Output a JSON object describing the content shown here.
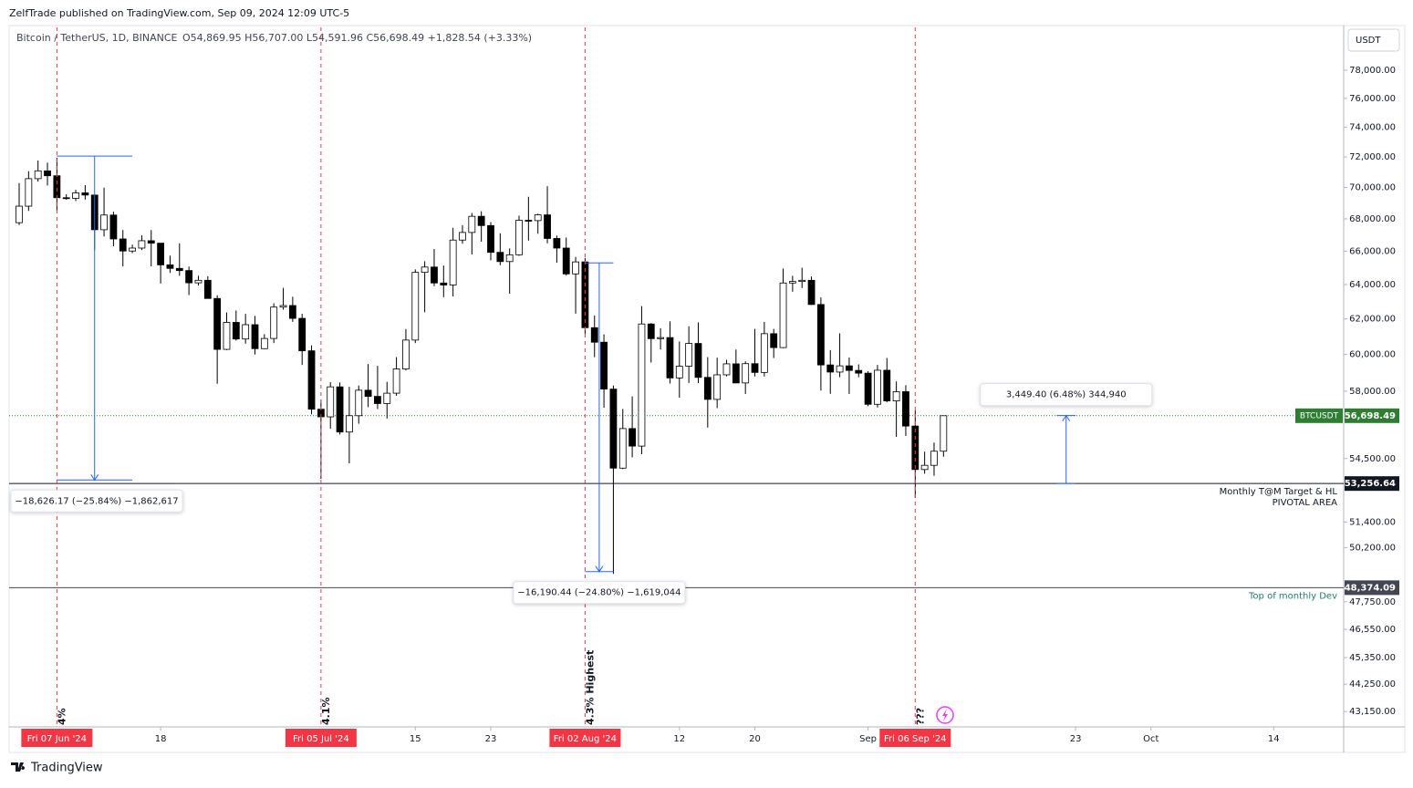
{
  "chart_data": {
    "type": "candlestick",
    "title": "ZelfTrade published on TradingView.com, Sep 09, 2024 12:09 UTC-5",
    "symbol": "Bitcoin / TetherUS, 1D, BINANCE",
    "ohlc_legend": "O54,869.95 H56,707.00 L54,591.96 C56,698.49 +1,828.54 (+3.33%)",
    "currency": "USDT",
    "brand": "TradingView",
    "log_scale": true,
    "x": [
      "2024-06-03",
      "2024-06-04",
      "2024-06-05",
      "2024-06-06",
      "2024-06-07",
      "2024-06-08",
      "2024-06-09",
      "2024-06-10",
      "2024-06-11",
      "2024-06-12",
      "2024-06-13",
      "2024-06-14",
      "2024-06-15",
      "2024-06-16",
      "2024-06-17",
      "2024-06-18",
      "2024-06-19",
      "2024-06-20",
      "2024-06-21",
      "2024-06-22",
      "2024-06-23",
      "2024-06-24",
      "2024-06-25",
      "2024-06-26",
      "2024-06-27",
      "2024-06-28",
      "2024-06-29",
      "2024-06-30",
      "2024-07-01",
      "2024-07-02",
      "2024-07-03",
      "2024-07-04",
      "2024-07-05",
      "2024-07-06",
      "2024-07-07",
      "2024-07-08",
      "2024-07-09",
      "2024-07-10",
      "2024-07-11",
      "2024-07-12",
      "2024-07-13",
      "2024-07-14",
      "2024-07-15",
      "2024-07-16",
      "2024-07-17",
      "2024-07-18",
      "2024-07-19",
      "2024-07-20",
      "2024-07-21",
      "2024-07-22",
      "2024-07-23",
      "2024-07-24",
      "2024-07-25",
      "2024-07-26",
      "2024-07-27",
      "2024-07-28",
      "2024-07-29",
      "2024-07-30",
      "2024-07-31",
      "2024-08-01",
      "2024-08-02",
      "2024-08-03",
      "2024-08-04",
      "2024-08-05",
      "2024-08-06",
      "2024-08-07",
      "2024-08-08",
      "2024-08-09",
      "2024-08-10",
      "2024-08-11",
      "2024-08-12",
      "2024-08-13",
      "2024-08-14",
      "2024-08-15",
      "2024-08-16",
      "2024-08-17",
      "2024-08-18",
      "2024-08-19",
      "2024-08-20",
      "2024-08-21",
      "2024-08-22",
      "2024-08-23",
      "2024-08-24",
      "2024-08-25",
      "2024-08-26",
      "2024-08-27",
      "2024-08-28",
      "2024-08-29",
      "2024-08-30",
      "2024-08-31",
      "2024-09-01",
      "2024-09-02",
      "2024-09-03",
      "2024-09-04",
      "2024-09-05",
      "2024-09-06",
      "2024-09-07",
      "2024-09-08",
      "2024-09-09"
    ],
    "open": [
      67760,
      68800,
      70570,
      71080,
      70760,
      69340,
      69300,
      69650,
      69510,
      67320,
      68240,
      66750,
      66010,
      66190,
      66640,
      66490,
      65170,
      64960,
      64830,
      64100,
      64250,
      63180,
      60280,
      61800,
      60860,
      61670,
      60320,
      60890,
      62680,
      62770,
      62030,
      60200,
      57040,
      56640,
      58230,
      55850,
      56700,
      58050,
      57720,
      57340,
      57890,
      59200,
      60800,
      64720,
      65040,
      64090,
      63970,
      66680,
      67150,
      68160,
      67580,
      65930,
      65370,
      65780,
      67910,
      67890,
      68250,
      66780,
      66190,
      64630,
      65350,
      61500,
      60680,
      58110,
      54020,
      56030,
      55130,
      61710,
      60880,
      60940,
      58710,
      59350,
      60610,
      58740,
      57560,
      58880,
      59480,
      58440,
      59490,
      59010,
      61160,
      60380,
      64090,
      64180,
      64250,
      62830,
      59420,
      59030,
      59370,
      59120,
      58970,
      57300,
      59130,
      57480,
      57970,
      56160,
      53950,
      54160,
      54869.95
    ],
    "high": [
      70280,
      71060,
      71760,
      71620,
      71950,
      69560,
      69850,
      70150,
      69560,
      69990,
      68450,
      67300,
      66400,
      66980,
      67300,
      66490,
      65730,
      66480,
      65070,
      64520,
      64490,
      63370,
      62370,
      62480,
      62290,
      62170,
      61130,
      62900,
      63800,
      63280,
      62290,
      60500,
      57560,
      58480,
      58470,
      58230,
      58300,
      59470,
      59370,
      58500,
      59850,
      61420,
      64900,
      65390,
      66130,
      65130,
      67440,
      67600,
      68370,
      68480,
      67800,
      67100,
      66170,
      68200,
      69400,
      68320,
      70080,
      66960,
      66840,
      65650,
      65590,
      62200,
      61120,
      58300,
      57050,
      57720,
      62740,
      61760,
      61470,
      61860,
      60720,
      61580,
      61800,
      59850,
      59820,
      59700,
      60270,
      59620,
      61430,
      61830,
      61430,
      64950,
      64520,
      65000,
      64480,
      63240,
      60240,
      61180,
      59830,
      59450,
      59080,
      59420,
      59800,
      58520,
      58320,
      56990,
      54850,
      55310,
      56707
    ],
    "low": [
      67610,
      68500,
      70380,
      70120,
      68500,
      69210,
      69130,
      69220,
      66060,
      66900,
      66300,
      65080,
      65880,
      66070,
      65080,
      64060,
      64690,
      64520,
      63380,
      63940,
      63180,
      58400,
      60240,
      60770,
      60600,
      60000,
      60300,
      60630,
      62530,
      61830,
      59420,
      56770,
      53490,
      56020,
      55720,
      54260,
      56280,
      57150,
      57050,
      56550,
      57750,
      59120,
      60630,
      62380,
      63900,
      63260,
      63300,
      66460,
      65800,
      66580,
      65440,
      65150,
      63460,
      65720,
      66650,
      67070,
      66480,
      65300,
      64530,
      62300,
      61160,
      59850,
      57120,
      49000,
      53970,
      54560,
      54720,
      59550,
      60270,
      58410,
      57650,
      58440,
      58430,
      56080,
      57100,
      58800,
      58420,
      57850,
      58790,
      58790,
      59800,
      60350,
      63580,
      63790,
      62800,
      58030,
      57860,
      58750,
      57850,
      58750,
      57200,
      57130,
      57410,
      55600,
      55650,
      52550,
      53740,
      53640,
      54591.96
    ],
    "close": [
      68800,
      70570,
      71080,
      70760,
      69340,
      69300,
      69650,
      69510,
      67320,
      68240,
      66750,
      66010,
      66190,
      66640,
      66490,
      65170,
      64960,
      64830,
      64100,
      64250,
      63180,
      60280,
      61800,
      60860,
      61670,
      60320,
      60890,
      62680,
      62770,
      62030,
      60200,
      57040,
      56640,
      58230,
      55850,
      56700,
      58050,
      57720,
      57340,
      57890,
      59200,
      60800,
      64720,
      65040,
      64090,
      63970,
      66680,
      67150,
      68160,
      67580,
      65930,
      65370,
      65780,
      67910,
      67890,
      68250,
      66780,
      66190,
      64630,
      65350,
      61500,
      60680,
      58110,
      54020,
      56030,
      55130,
      61710,
      60880,
      60940,
      58710,
      59350,
      60610,
      58740,
      57560,
      58880,
      59480,
      58440,
      59490,
      59010,
      61160,
      60380,
      64090,
      64180,
      64250,
      62830,
      59420,
      59030,
      59370,
      59120,
      58970,
      57300,
      59130,
      57480,
      57970,
      56160,
      53950,
      54160,
      54870,
      56698.49
    ],
    "ylim": [
      42540,
      81150
    ],
    "yticks": [
      {
        "value": 78000,
        "label": "78,000.00"
      },
      {
        "value": 76000,
        "label": "76,000.00"
      },
      {
        "value": 74000,
        "label": "74,000.00"
      },
      {
        "value": 72000,
        "label": "72,000.00"
      },
      {
        "value": 70000,
        "label": "70,000.00"
      },
      {
        "value": 68000,
        "label": "68,000.00"
      },
      {
        "value": 66000,
        "label": "66,000.00"
      },
      {
        "value": 64000,
        "label": "64,000.00"
      },
      {
        "value": 62000,
        "label": "62,000.00"
      },
      {
        "value": 60000,
        "label": "60,000.00"
      },
      {
        "value": 58000,
        "label": "58,000.00"
      },
      {
        "value": 54500,
        "label": "54,500.00"
      },
      {
        "value": 51400,
        "label": "51,400.00"
      },
      {
        "value": 50200,
        "label": "50,200.00"
      },
      {
        "value": 47750,
        "label": "47,750.00"
      },
      {
        "value": 46550,
        "label": "46,550.00"
      },
      {
        "value": 45350,
        "label": "45,350.00"
      },
      {
        "value": 44250,
        "label": "44,250.00"
      },
      {
        "value": 43150,
        "label": "43,150.00"
      }
    ],
    "xticks": [
      {
        "value": "2024-06-18",
        "label": "18"
      },
      {
        "value": "2024-07-15",
        "label": "15"
      },
      {
        "value": "2024-07-23",
        "label": "23"
      },
      {
        "value": "2024-08-12",
        "label": "12"
      },
      {
        "value": "2024-08-20",
        "label": "20"
      },
      {
        "value": "2024-09-01",
        "label": "Sep"
      },
      {
        "value": "2024-09-23",
        "label": "23"
      },
      {
        "value": "2024-10-01",
        "label": "Oct"
      },
      {
        "value": "2024-10-14",
        "label": "14"
      }
    ],
    "last_price": {
      "value": 56698.49,
      "tag": "56,698.49",
      "name": "BTCUSDT",
      "color": "#2e7d32"
    },
    "hlines": [
      {
        "value": 53256.64,
        "tag": "53,256.64",
        "labels": [
          "Monthly T@M Target & HL",
          "PIVOTAL AREA"
        ],
        "color": "#131722"
      },
      {
        "value": 48374.09,
        "tag": "48,374.09",
        "labels": [
          "Top of monthly Dev"
        ],
        "color": "#434651",
        "label_color": "#22806b"
      }
    ],
    "vlines": [
      {
        "date": "2024-06-07",
        "axis_label": "Fri 07 Jun '24",
        "label": "4%"
      },
      {
        "date": "2024-07-05",
        "axis_label": "Fri 05 Jul '24",
        "label": "4.1%"
      },
      {
        "date": "2024-08-02",
        "axis_label": "Fri 02 Aug '24",
        "label": "4.3% Highest"
      },
      {
        "date": "2024-09-06",
        "axis_label": "Fri 06 Sep '24",
        "label": "???"
      }
    ],
    "measures": [
      {
        "from_date": "2024-06-07",
        "to_date": "2024-06-15",
        "from": 72057,
        "to": 53430.83,
        "label": "−18,626.17 (−25.84%) −1,862,617"
      },
      {
        "from_date": "2024-08-02",
        "to_date": "2024-08-05",
        "from": 65290,
        "to": 49099.56,
        "label": "−16,190.44 (−24.80%) −1,619,044"
      },
      {
        "from_date": "2024-09-21",
        "to_date": "2024-09-23",
        "from": 53256.64,
        "to": 56706.04,
        "label": "3,449.40 (6.48%) 344,940"
      }
    ]
  }
}
